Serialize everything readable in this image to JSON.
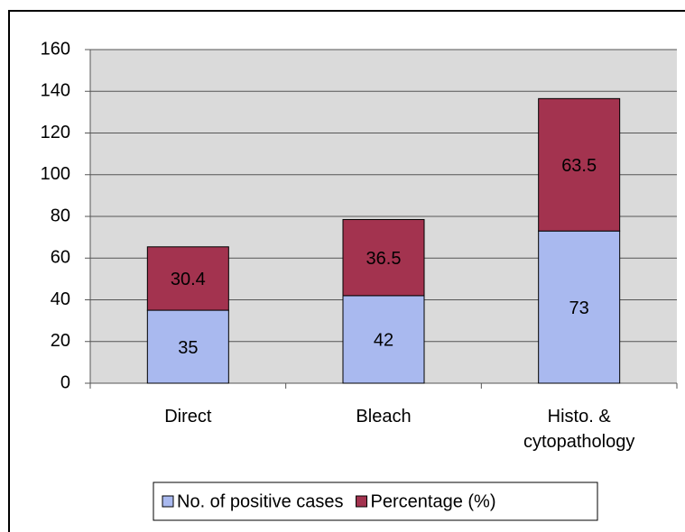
{
  "chart_data": {
    "type": "stacked_bar",
    "categories": [
      "Direct",
      "Bleach",
      "Histo. & cytopathology"
    ],
    "series": [
      {
        "name": "No. of positive cases",
        "color": "#a9b9ef",
        "values": [
          35,
          42,
          73
        ]
      },
      {
        "name": "Percentage (%)",
        "color": "#a3334f",
        "values": [
          30.4,
          36.5,
          63.5
        ]
      }
    ],
    "ylim": [
      0,
      160
    ],
    "yticks": [
      0,
      20,
      40,
      60,
      80,
      100,
      120,
      140,
      160
    ],
    "grid": true,
    "legend": "bottom"
  }
}
